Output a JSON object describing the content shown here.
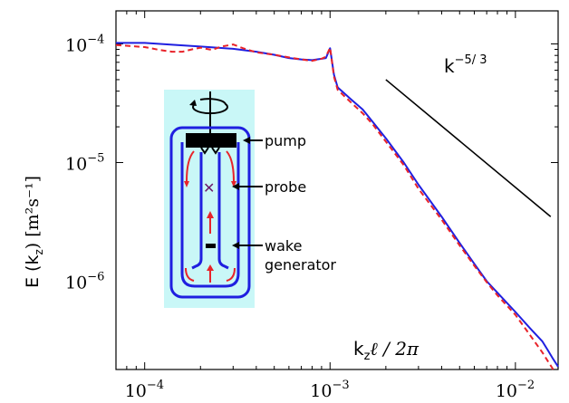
{
  "chart_data": {
    "type": "line",
    "xlabel": "k",
    "xlabel_sub": "z",
    "xlabel_rest": "ℓ / 2π",
    "ylabel": "E (k",
    "ylabel_sub": "z",
    "ylabel_rest": ") [m²s⁻¹]",
    "xscale": "log",
    "yscale": "log",
    "xlim": [
      7e-05,
      0.017
    ],
    "ylim": [
      1.8e-07,
      0.00019
    ],
    "x_ticks": [
      {
        "base": "10",
        "exp": "−4",
        "value": 0.0001
      },
      {
        "base": "10",
        "exp": "−3",
        "value": 0.001
      },
      {
        "base": "10",
        "exp": "−2",
        "value": 0.01
      }
    ],
    "y_ticks": [
      {
        "base": "10",
        "exp": "−4",
        "value": 0.0001
      },
      {
        "base": "10",
        "exp": "−5",
        "value": 1e-05
      },
      {
        "base": "10",
        "exp": "−6",
        "value": 1e-06
      }
    ],
    "series": [
      {
        "color": "#1f1fe0",
        "style": "solid",
        "x": [
          7e-05,
          0.0001,
          0.00015,
          0.0002,
          0.0003,
          0.0004,
          0.0005,
          0.0006,
          0.0007,
          0.0008,
          0.0009,
          0.00095,
          0.001,
          0.00105,
          0.0011,
          0.0012,
          0.0013,
          0.0015,
          0.0017,
          0.002,
          0.0025,
          0.003,
          0.004,
          0.005,
          0.006,
          0.007,
          0.008,
          0.01,
          0.012,
          0.014,
          0.015,
          0.016,
          0.017
        ],
        "y": [
          0.000102,
          0.000102,
          9.8e-05,
          9.5e-05,
          9.1e-05,
          8.6e-05,
          8.1e-05,
          7.6e-05,
          7.4e-05,
          7.3e-05,
          7.5e-05,
          7.6e-05,
          9.2e-05,
          5.5e-05,
          4.3e-05,
          3.8e-05,
          3.4e-05,
          2.8e-05,
          2.2e-05,
          1.6e-05,
          1e-05,
          6.5e-06,
          3.5e-06,
          2.1e-06,
          1.4e-06,
          1e-06,
          8e-07,
          5.5e-07,
          4e-07,
          3.1e-07,
          2.6e-07,
          2.2e-07,
          1.9e-07
        ]
      },
      {
        "color": "#e8232a",
        "style": "dashed",
        "x": [
          7e-05,
          0.0001,
          0.00012,
          0.00014,
          0.00016,
          0.00018,
          0.0002,
          0.00023,
          0.00026,
          0.0003,
          0.00034,
          0.0004,
          0.0005,
          0.0006,
          0.0007,
          0.0008,
          0.0009,
          0.00095,
          0.001,
          0.00105,
          0.0011,
          0.0012,
          0.0013,
          0.0015,
          0.0017,
          0.002,
          0.0025,
          0.003,
          0.004,
          0.005,
          0.006,
          0.007,
          0.008,
          0.01,
          0.012,
          0.014,
          0.015,
          0.016
        ],
        "y": [
          9.8e-05,
          9.4e-05,
          8.9e-05,
          8.6e-05,
          8.6e-05,
          9e-05,
          9.3e-05,
          8.9e-05,
          9.5e-05,
          9.9e-05,
          9.2e-05,
          8.5e-05,
          8.1e-05,
          7.7e-05,
          7.4e-05,
          7.2e-05,
          7.5e-05,
          7.8e-05,
          9.3e-05,
          5.3e-05,
          4.1e-05,
          3.6e-05,
          3.2e-05,
          2.6e-05,
          2.1e-05,
          1.5e-05,
          9.5e-06,
          6e-06,
          3.3e-06,
          2e-06,
          1.35e-06,
          9.8e-07,
          7.6e-07,
          5.2e-07,
          3.5e-07,
          2.5e-07,
          2.1e-07,
          1.8e-07
        ]
      }
    ],
    "reference_line": {
      "label": "k",
      "exp": "−5/ 3",
      "x": [
        0.002,
        0.0155
      ],
      "y": [
        5e-05,
        3.5e-06
      ]
    },
    "inset": {
      "labels": {
        "pump": "pump",
        "probe": "probe",
        "wake1": "wake",
        "wake2": "generator"
      }
    }
  }
}
